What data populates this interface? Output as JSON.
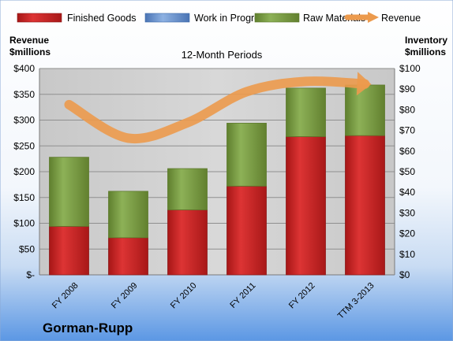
{
  "chart_data": {
    "type": "bar",
    "stacked": true,
    "categories": [
      "FY 2008",
      "FY 2009",
      "FY 2010",
      "FY 2011",
      "FY 2012",
      "TTM 3-2013"
    ],
    "title": "12-Month Periods",
    "company": "Gorman-Rupp",
    "left_axis": {
      "label_line1": "Revenue",
      "label_line2": "$millions",
      "range": [
        0,
        400
      ],
      "ticks": [
        "$-",
        "$50",
        "$100",
        "$150",
        "$200",
        "$250",
        "$300",
        "$350",
        "$400"
      ]
    },
    "right_axis": {
      "label_line1": "Inventory",
      "label_line2": "$millions",
      "range": [
        0,
        100
      ],
      "ticks": [
        "$0",
        "$10",
        "$20",
        "$30",
        "$40",
        "$50",
        "$60",
        "$70",
        "$80",
        "$90",
        "$100"
      ]
    },
    "series": [
      {
        "name": "Finished Goods",
        "axis": "right",
        "color": "#d42a2a",
        "values": [
          23.5,
          18,
          31.5,
          43,
          67,
          67.5
        ]
      },
      {
        "name": "Work in Progress",
        "axis": "right",
        "color": "#6e96d0",
        "values": [
          0,
          0,
          0,
          0,
          0,
          0
        ]
      },
      {
        "name": "Raw Materials",
        "axis": "right",
        "color": "#86a84a",
        "values": [
          33.5,
          22.5,
          20,
          30.5,
          23.5,
          24.5
        ]
      },
      {
        "name": "Revenue",
        "axis": "left",
        "type": "line",
        "color": "#ec9a4d",
        "values": [
          330,
          265,
          295,
          355,
          375,
          370
        ]
      }
    ],
    "legend_position": "top",
    "grid": true
  }
}
